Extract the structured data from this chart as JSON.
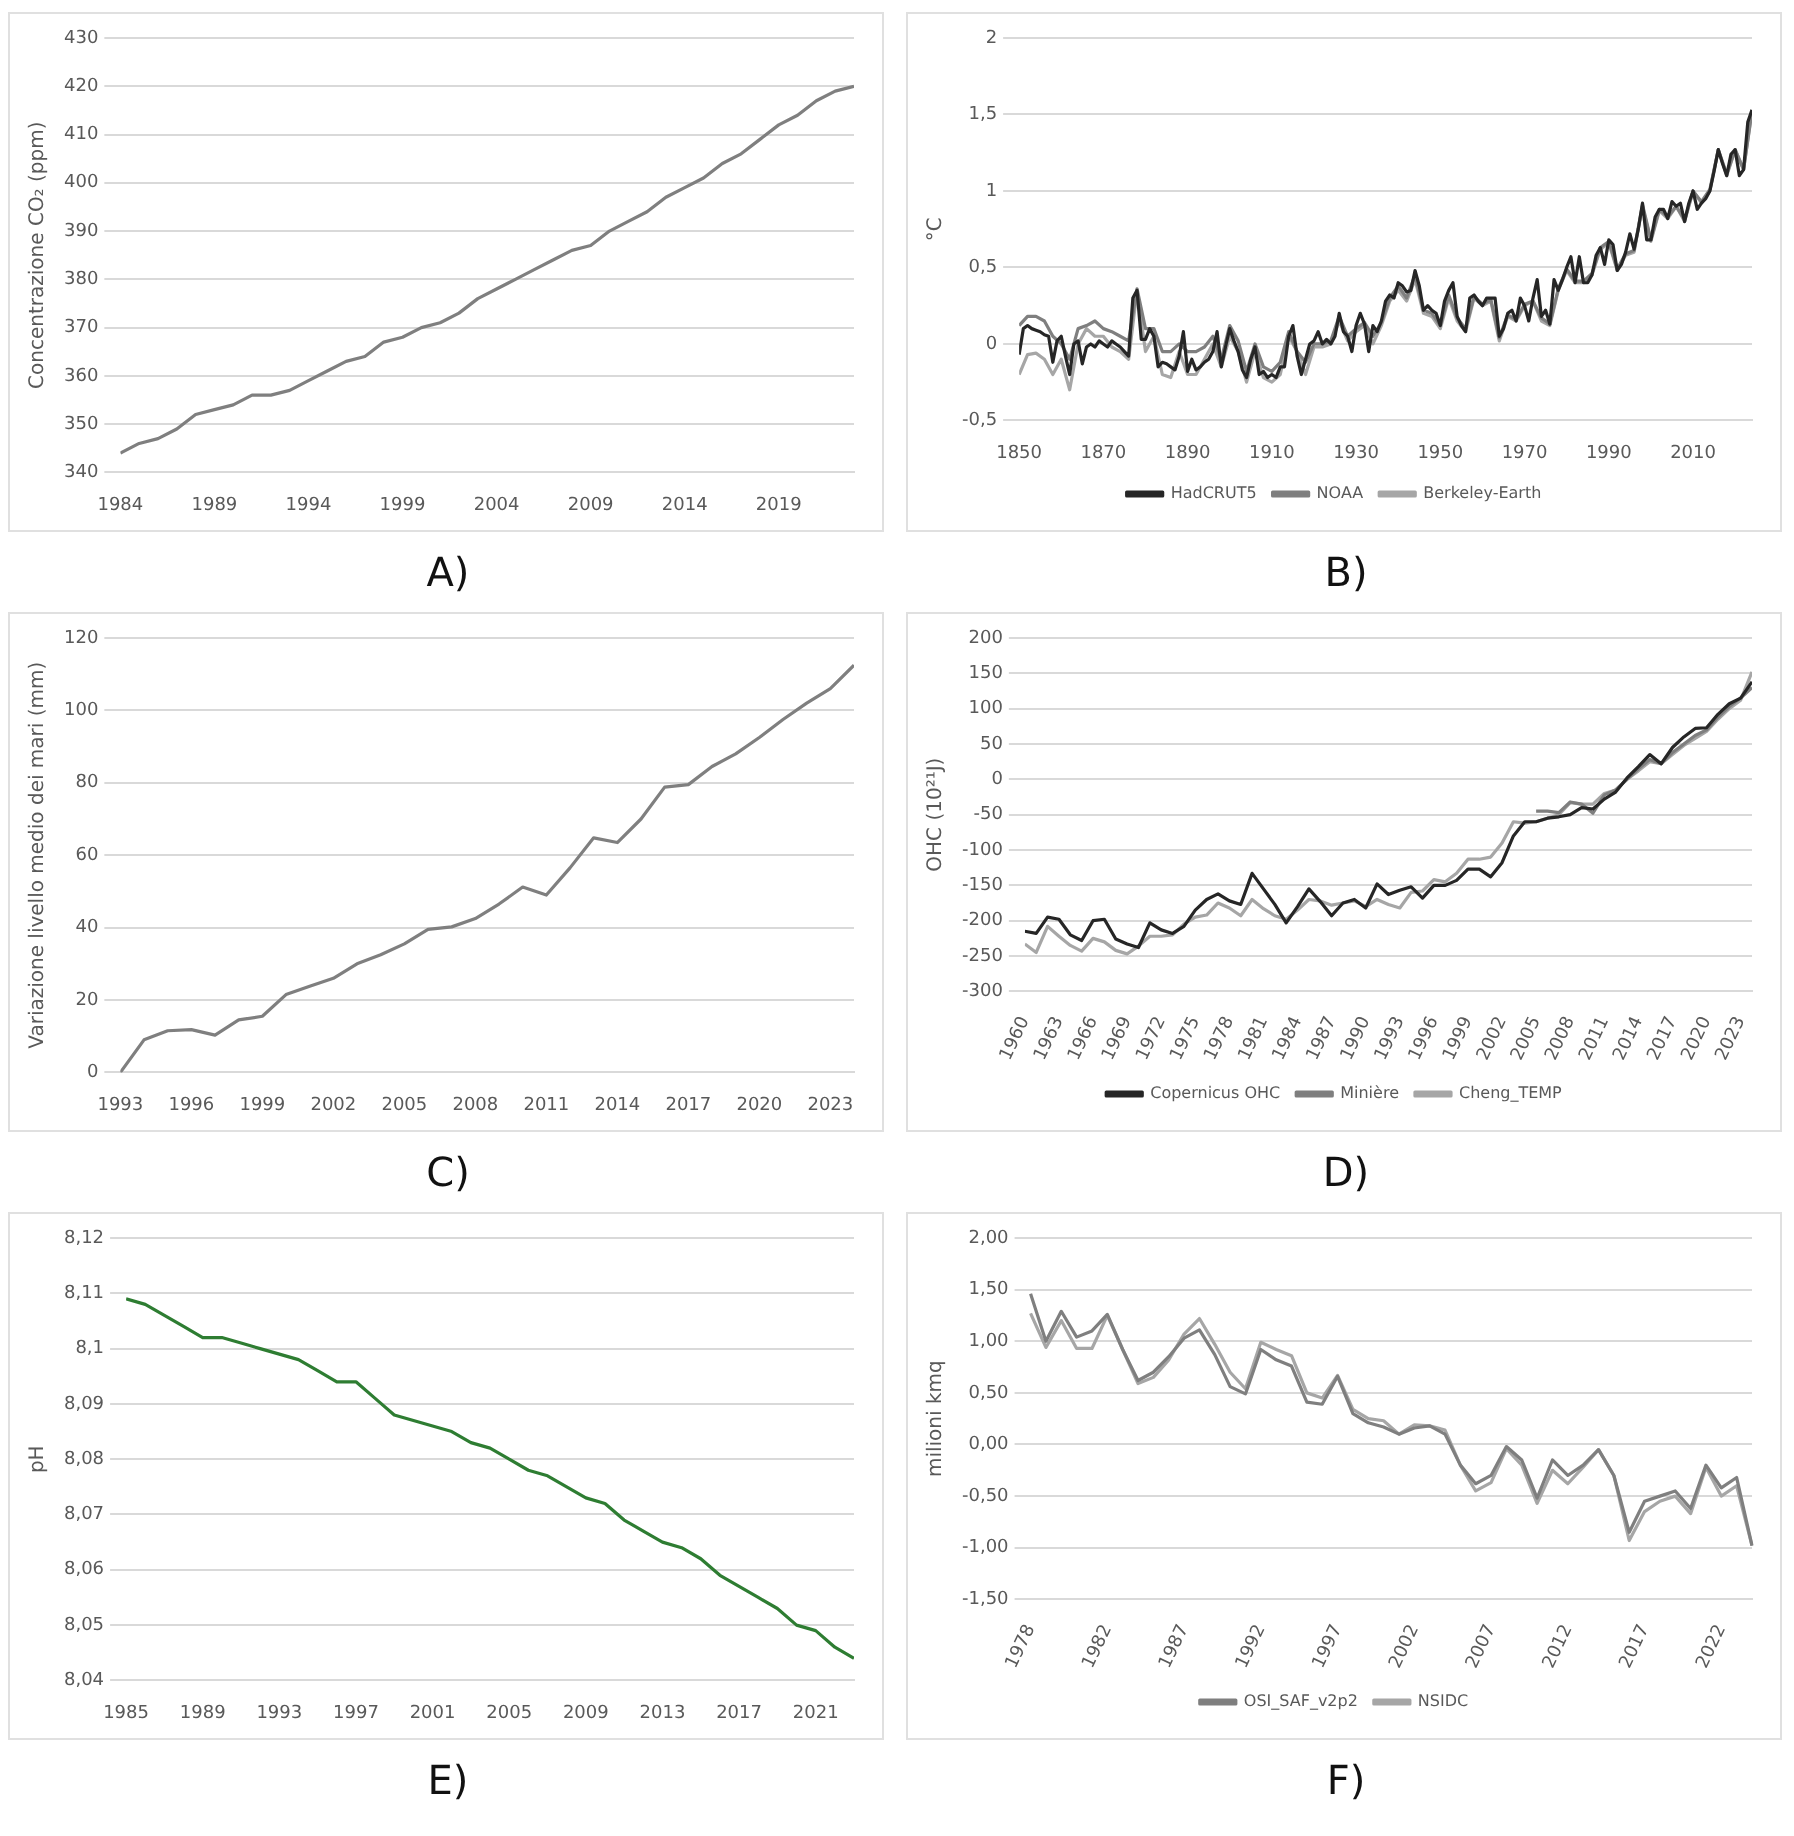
{
  "chart_data": [
    {
      "type": "line",
      "title": "A)",
      "ylabel": "Concentrazione CO₂ (ppm)",
      "marker": "none",
      "grid": "y",
      "legend": false,
      "x": [
        1984,
        1985,
        1986,
        1987,
        1988,
        1989,
        1990,
        1991,
        1992,
        1993,
        1994,
        1995,
        1996,
        1997,
        1998,
        1999,
        2000,
        2001,
        2002,
        2003,
        2004,
        2005,
        2006,
        2007,
        2008,
        2009,
        2010,
        2011,
        2012,
        2013,
        2014,
        2015,
        2016,
        2017,
        2018,
        2019,
        2020,
        2021,
        2022,
        2023
      ],
      "series": [
        {
          "color": "#7f7f7f",
          "values": [
            344,
            346,
            347,
            349,
            352,
            353,
            354,
            356,
            356,
            357,
            359,
            361,
            363,
            364,
            367,
            368,
            370,
            371,
            373,
            376,
            378,
            380,
            382,
            384,
            386,
            387,
            390,
            392,
            394,
            397,
            399,
            401,
            404,
            406,
            409,
            412,
            414,
            417,
            419,
            420
          ]
        }
      ],
      "xlim": [
        1984,
        2023
      ],
      "xticks": [
        1984,
        1989,
        1994,
        1999,
        2004,
        2009,
        2014,
        2019
      ],
      "ylim": [
        340,
        430
      ],
      "yticks": [
        340,
        350,
        360,
        370,
        380,
        390,
        400,
        410,
        420,
        430
      ]
    },
    {
      "type": "line",
      "title": "B)",
      "ylabel": "°C",
      "marker": "none",
      "grid": "y",
      "legend": "bottom",
      "x": [
        1850,
        1851,
        1852,
        1853,
        1854,
        1855,
        1856,
        1857,
        1858,
        1859,
        1860,
        1861,
        1862,
        1863,
        1864,
        1865,
        1866,
        1867,
        1868,
        1869,
        1870,
        1871,
        1872,
        1873,
        1874,
        1875,
        1876,
        1877,
        1878,
        1879,
        1880,
        1881,
        1882,
        1883,
        1884,
        1885,
        1886,
        1887,
        1888,
        1889,
        1890,
        1891,
        1892,
        1893,
        1894,
        1895,
        1896,
        1897,
        1898,
        1899,
        1900,
        1901,
        1902,
        1903,
        1904,
        1905,
        1906,
        1907,
        1908,
        1909,
        1910,
        1911,
        1912,
        1913,
        1914,
        1915,
        1916,
        1917,
        1918,
        1919,
        1920,
        1921,
        1922,
        1923,
        1924,
        1925,
        1926,
        1927,
        1928,
        1929,
        1930,
        1931,
        1932,
        1933,
        1934,
        1935,
        1936,
        1937,
        1938,
        1939,
        1940,
        1941,
        1942,
        1943,
        1944,
        1945,
        1946,
        1947,
        1948,
        1949,
        1950,
        1951,
        1952,
        1953,
        1954,
        1955,
        1956,
        1957,
        1958,
        1959,
        1960,
        1961,
        1962,
        1963,
        1964,
        1965,
        1966,
        1967,
        1968,
        1969,
        1970,
        1971,
        1972,
        1973,
        1974,
        1975,
        1976,
        1977,
        1978,
        1979,
        1980,
        1981,
        1982,
        1983,
        1984,
        1985,
        1986,
        1987,
        1988,
        1989,
        1990,
        1991,
        1992,
        1993,
        1994,
        1995,
        1996,
        1997,
        1998,
        1999,
        2000,
        2001,
        2002,
        2003,
        2004,
        2005,
        2006,
        2007,
        2008,
        2009,
        2010,
        2011,
        2012,
        2013,
        2014,
        2015,
        2016,
        2017,
        2018,
        2019,
        2020,
        2021,
        2022,
        2023,
        2024
      ],
      "series": [
        {
          "name": "Berkeley-Earth",
          "color": "#a6a6a6",
          "x": [
            1850,
            1852,
            1854,
            1856,
            1858,
            1860,
            1862,
            1864,
            1866,
            1868,
            1870,
            1872,
            1874,
            1876,
            1878,
            1880,
            1882,
            1884,
            1886,
            1888,
            1890,
            1892,
            1894,
            1896,
            1898,
            1900,
            1902,
            1904,
            1906,
            1908,
            1910,
            1912,
            1914,
            1916,
            1918,
            1920,
            1922,
            1924,
            1926,
            1928,
            1930,
            1932,
            1934,
            1936,
            1938,
            1940,
            1942,
            1944,
            1946,
            1948,
            1950,
            1952,
            1954,
            1956,
            1958,
            1960,
            1962,
            1964,
            1966,
            1968,
            1970,
            1972,
            1974,
            1976,
            1978,
            1980,
            1982,
            1984,
            1986,
            1988,
            1990,
            1992,
            1994,
            1996,
            1998,
            2000,
            2002,
            2004,
            2006,
            2008,
            2010,
            2012,
            2014,
            2016,
            2018,
            2020,
            2022,
            2024
          ],
          "values": [
            -0.2,
            -0.07,
            -0.06,
            -0.1,
            -0.2,
            -0.1,
            -0.3,
            0.0,
            0.1,
            0.05,
            0.05,
            -0.02,
            -0.05,
            -0.1,
            0.35,
            -0.05,
            0.05,
            -0.2,
            -0.22,
            -0.05,
            -0.2,
            -0.2,
            -0.1,
            0.0,
            -0.15,
            0.05,
            -0.05,
            -0.25,
            -0.05,
            -0.22,
            -0.25,
            -0.2,
            0.05,
            -0.05,
            -0.2,
            -0.02,
            -0.02,
            0.0,
            0.15,
            0.02,
            0.08,
            0.12,
            0.0,
            0.12,
            0.28,
            0.35,
            0.28,
            0.42,
            0.2,
            0.18,
            0.1,
            0.3,
            0.15,
            0.08,
            0.3,
            0.25,
            0.28,
            0.02,
            0.18,
            0.15,
            0.25,
            0.28,
            0.15,
            0.12,
            0.35,
            0.48,
            0.4,
            0.4,
            0.45,
            0.62,
            0.66,
            0.48,
            0.58,
            0.6,
            0.9,
            0.67,
            0.87,
            0.82,
            0.9,
            0.8,
            1.0,
            0.92,
            1.0,
            1.27,
            1.1,
            1.27,
            1.14,
            1.53
          ]
        },
        {
          "name": "NOAA",
          "color": "#7f7f7f",
          "x": [
            1850,
            1852,
            1854,
            1856,
            1858,
            1860,
            1862,
            1864,
            1866,
            1868,
            1870,
            1872,
            1874,
            1876,
            1878,
            1880,
            1882,
            1884,
            1886,
            1888,
            1890,
            1892,
            1894,
            1896,
            1898,
            1900,
            1902,
            1904,
            1906,
            1908,
            1910,
            1912,
            1914,
            1916,
            1918,
            1920,
            1922,
            1924,
            1926,
            1928,
            1930,
            1932,
            1934,
            1936,
            1938,
            1940,
            1942,
            1944,
            1946,
            1948,
            1950,
            1952,
            1954,
            1956,
            1958,
            1960,
            1962,
            1964,
            1966,
            1968,
            1970,
            1972,
            1974,
            1976,
            1978,
            1980,
            1982,
            1984,
            1986,
            1988,
            1990,
            1992,
            1994,
            1996,
            1998,
            2000,
            2002,
            2004,
            2006,
            2008,
            2010,
            2012,
            2014,
            2016,
            2018,
            2020,
            2022,
            2024
          ],
          "values": [
            0.12,
            0.18,
            0.18,
            0.15,
            0.05,
            0.0,
            -0.1,
            0.1,
            0.12,
            0.15,
            0.1,
            0.08,
            0.05,
            0.02,
            0.36,
            0.1,
            0.1,
            -0.05,
            -0.05,
            0.0,
            -0.05,
            -0.05,
            -0.02,
            0.05,
            -0.1,
            0.12,
            0.02,
            -0.18,
            0.0,
            -0.15,
            -0.18,
            -0.12,
            0.08,
            -0.05,
            -0.12,
            0.0,
            0.0,
            0.02,
            0.18,
            0.05,
            0.1,
            0.14,
            0.05,
            0.14,
            0.3,
            0.38,
            0.3,
            0.45,
            0.22,
            0.2,
            0.12,
            0.32,
            0.17,
            0.1,
            0.31,
            0.26,
            0.29,
            0.04,
            0.19,
            0.16,
            0.26,
            0.28,
            0.17,
            0.13,
            0.36,
            0.49,
            0.41,
            0.41,
            0.46,
            0.63,
            0.67,
            0.49,
            0.59,
            0.61,
            0.91,
            0.68,
            0.88,
            0.83,
            0.9,
            0.81,
            1.0,
            0.93,
            1.01,
            1.27,
            1.11,
            1.27,
            1.14,
            1.52
          ]
        },
        {
          "name": "HadCRUT5",
          "color": "#262626",
          "values": [
            -0.07,
            0.1,
            0.12,
            0.1,
            0.09,
            0.08,
            0.06,
            0.05,
            -0.12,
            0.02,
            0.05,
            -0.08,
            -0.2,
            0.0,
            0.02,
            -0.13,
            -0.02,
            0.0,
            -0.02,
            0.02,
            0.0,
            -0.02,
            0.02,
            0.0,
            -0.02,
            -0.05,
            -0.08,
            0.3,
            0.35,
            0.03,
            0.03,
            0.1,
            0.05,
            -0.15,
            -0.12,
            -0.13,
            -0.15,
            -0.17,
            -0.08,
            0.08,
            -0.18,
            -0.1,
            -0.17,
            -0.15,
            -0.12,
            -0.1,
            -0.05,
            0.08,
            -0.15,
            -0.02,
            0.1,
            0.02,
            -0.05,
            -0.17,
            -0.22,
            -0.1,
            -0.02,
            -0.2,
            -0.18,
            -0.22,
            -0.2,
            -0.22,
            -0.15,
            -0.15,
            0.05,
            0.12,
            -0.08,
            -0.2,
            -0.1,
            0.0,
            0.02,
            0.08,
            0.0,
            0.03,
            0.0,
            0.05,
            0.2,
            0.08,
            0.05,
            -0.05,
            0.12,
            0.2,
            0.13,
            -0.05,
            0.12,
            0.08,
            0.15,
            0.28,
            0.32,
            0.3,
            0.4,
            0.38,
            0.34,
            0.35,
            0.48,
            0.38,
            0.22,
            0.25,
            0.22,
            0.2,
            0.12,
            0.28,
            0.35,
            0.4,
            0.18,
            0.12,
            0.08,
            0.3,
            0.32,
            0.28,
            0.25,
            0.3,
            0.3,
            0.3,
            0.05,
            0.1,
            0.2,
            0.22,
            0.15,
            0.3,
            0.25,
            0.15,
            0.3,
            0.42,
            0.18,
            0.22,
            0.13,
            0.42,
            0.35,
            0.42,
            0.5,
            0.57,
            0.4,
            0.57,
            0.4,
            0.4,
            0.45,
            0.58,
            0.63,
            0.52,
            0.68,
            0.65,
            0.48,
            0.52,
            0.6,
            0.72,
            0.62,
            0.75,
            0.92,
            0.68,
            0.68,
            0.83,
            0.88,
            0.88,
            0.82,
            0.93,
            0.9,
            0.92,
            0.8,
            0.92,
            1.0,
            0.88,
            0.92,
            0.95,
            1.0,
            1.13,
            1.27,
            1.18,
            1.1,
            1.24,
            1.27,
            1.1,
            1.14,
            1.45,
            1.53
          ]
        }
      ],
      "xlim": [
        1850,
        2024
      ],
      "xticks": [
        1850,
        1870,
        1890,
        1910,
        1930,
        1950,
        1970,
        1990,
        2010
      ],
      "ylim": [
        -0.5,
        2
      ],
      "yticks": [
        {
          "value": -0.5,
          "label": "-0,5"
        },
        0,
        {
          "value": 0.5,
          "label": "0,5"
        },
        1,
        {
          "value": 1.5,
          "label": "1,5"
        },
        2
      ]
    },
    {
      "type": "line",
      "title": "C)",
      "ylabel": "Variazione livello medio dei mari (mm)",
      "marker": "none",
      "grid": "y",
      "legend": false,
      "x": [
        1993,
        1994,
        1995,
        1996,
        1997,
        1998,
        1999,
        2000,
        2001,
        2002,
        2003,
        2004,
        2005,
        2006,
        2007,
        2008,
        2009,
        2010,
        2011,
        2012,
        2013,
        2014,
        2015,
        2016,
        2017,
        2018,
        2019,
        2020,
        2021,
        2022,
        2023,
        2024
      ],
      "series": [
        {
          "color": "#7f7f7f",
          "values": [
            0,
            9,
            11.5,
            11.8,
            10.3,
            14.5,
            15.5,
            21.5,
            23.8,
            26,
            30,
            32.5,
            35.5,
            39.5,
            40.2,
            42.5,
            46.5,
            51.2,
            49,
            56.5,
            64.8,
            63.5,
            70,
            78.8,
            79.5,
            84.5,
            88,
            92.5,
            97.5,
            102,
            106,
            112.5
          ]
        }
      ],
      "xlim": [
        1993,
        2024
      ],
      "xticks": [
        1993,
        1996,
        1999,
        2002,
        2005,
        2008,
        2011,
        2014,
        2017,
        2020,
        2023
      ],
      "ylim": [
        0,
        120
      ],
      "yticks": [
        0,
        20,
        40,
        60,
        80,
        100,
        120
      ]
    },
    {
      "type": "line",
      "title": "D)",
      "ylabel": "OHC (10²¹J)",
      "marker": "none",
      "grid": "y",
      "legend": "bottom",
      "x": [
        1960,
        1961,
        1962,
        1963,
        1964,
        1965,
        1966,
        1967,
        1968,
        1969,
        1970,
        1971,
        1972,
        1973,
        1974,
        1975,
        1976,
        1977,
        1978,
        1979,
        1980,
        1981,
        1982,
        1983,
        1984,
        1985,
        1986,
        1987,
        1988,
        1989,
        1990,
        1991,
        1992,
        1993,
        1994,
        1995,
        1996,
        1997,
        1998,
        1999,
        2000,
        2001,
        2002,
        2003,
        2004,
        2005,
        2006,
        2007,
        2008,
        2009,
        2010,
        2011,
        2012,
        2013,
        2014,
        2015,
        2016,
        2017,
        2018,
        2019,
        2020,
        2021,
        2022,
        2023,
        2024
      ],
      "series": [
        {
          "name": "Cheng_TEMP",
          "color": "#a6a6a6",
          "values": [
            -233,
            -245,
            -208,
            -222,
            -235,
            -243,
            -225,
            -230,
            -242,
            -247,
            -236,
            -222,
            -222,
            -220,
            -205,
            -195,
            -192,
            -175,
            -182,
            -193,
            -170,
            -183,
            -193,
            -198,
            -185,
            -170,
            -172,
            -178,
            -175,
            -172,
            -180,
            -170,
            -177,
            -182,
            -160,
            -158,
            -142,
            -145,
            -133,
            -113,
            -113,
            -110,
            -90,
            -60,
            -62,
            -60,
            -55,
            -50,
            -33,
            -35,
            -35,
            -20,
            -15,
            0,
            12,
            25,
            22,
            35,
            48,
            58,
            68,
            85,
            100,
            112,
            152
          ]
        },
        {
          "name": "Minière",
          "color": "#7f7f7f",
          "x": [
            2005,
            2006,
            2007,
            2008,
            2009,
            2010,
            2011,
            2012,
            2013,
            2014,
            2015,
            2016,
            2017,
            2018,
            2019,
            2020,
            2021,
            2022,
            2023,
            2024
          ],
          "values": [
            -45,
            -45,
            -47,
            -32,
            -35,
            -48,
            -22,
            -15,
            0,
            15,
            28,
            22,
            38,
            50,
            62,
            70,
            88,
            103,
            115,
            130
          ]
        },
        {
          "name": "Copernicus OHC",
          "color": "#262626",
          "values": [
            -215,
            -218,
            -195,
            -198,
            -220,
            -228,
            -200,
            -198,
            -226,
            -233,
            -238,
            -203,
            -213,
            -218,
            -208,
            -185,
            -170,
            -162,
            -172,
            -177,
            -133,
            -155,
            -177,
            -203,
            -180,
            -155,
            -173,
            -193,
            -175,
            -170,
            -182,
            -148,
            -163,
            -157,
            -152,
            -168,
            -150,
            -150,
            -143,
            -127,
            -127,
            -138,
            -118,
            -80,
            -60,
            -60,
            -55,
            -53,
            -50,
            -40,
            -42,
            -28,
            -18,
            2,
            18,
            35,
            22,
            45,
            60,
            72,
            73,
            92,
            107,
            115,
            138
          ]
        }
      ],
      "xlim": [
        1960,
        2024
      ],
      "xticks": [
        1960,
        1963,
        1966,
        1969,
        1972,
        1975,
        1978,
        1981,
        1984,
        1987,
        1990,
        1993,
        1996,
        1999,
        2002,
        2005,
        2008,
        2011,
        2014,
        2017,
        2020,
        2023
      ],
      "ylim": [
        -300,
        200
      ],
      "yticks": [
        -300,
        -250,
        -200,
        -150,
        -100,
        -50,
        0,
        50,
        100,
        150,
        200
      ]
    },
    {
      "type": "line",
      "title": "E)",
      "ylabel": "pH",
      "marker": "none",
      "grid": "y",
      "legend": false,
      "x": [
        1985,
        1986,
        1987,
        1988,
        1989,
        1990,
        1991,
        1992,
        1993,
        1994,
        1995,
        1996,
        1997,
        1998,
        1999,
        2000,
        2001,
        2002,
        2003,
        2004,
        2005,
        2006,
        2007,
        2008,
        2009,
        2010,
        2011,
        2012,
        2013,
        2014,
        2015,
        2016,
        2017,
        2018,
        2019,
        2020,
        2021,
        2022,
        2023
      ],
      "series": [
        {
          "color": "#2e7d32",
          "values": [
            8.109,
            8.108,
            8.106,
            8.104,
            8.102,
            8.102,
            8.101,
            8.1,
            8.099,
            8.098,
            8.096,
            8.094,
            8.094,
            8.091,
            8.088,
            8.087,
            8.086,
            8.085,
            8.083,
            8.082,
            8.08,
            8.078,
            8.077,
            8.075,
            8.073,
            8.072,
            8.069,
            8.067,
            8.065,
            8.064,
            8.062,
            8.059,
            8.057,
            8.055,
            8.053,
            8.05,
            8.049,
            8.046,
            8.044
          ]
        }
      ],
      "xlim": [
        1985,
        2023
      ],
      "xticks": [
        1985,
        1989,
        1993,
        1997,
        2001,
        2005,
        2009,
        2013,
        2017,
        2021
      ],
      "ylim": [
        8.04,
        8.12
      ],
      "yticks": [
        {
          "value": 8.04,
          "label": "8,04"
        },
        {
          "value": 8.05,
          "label": "8,05"
        },
        {
          "value": 8.06,
          "label": "8,06"
        },
        {
          "value": 8.07,
          "label": "8,07"
        },
        {
          "value": 8.08,
          "label": "8,08"
        },
        {
          "value": 8.09,
          "label": "8,09"
        },
        {
          "value": 8.1,
          "label": "8,1"
        },
        {
          "value": 8.11,
          "label": "8,11"
        },
        {
          "value": 8.12,
          "label": "8,12"
        }
      ]
    },
    {
      "type": "line",
      "title": "F)",
      "ylabel": "milioni kmq",
      "marker": "none",
      "grid": "y",
      "legend": "bottom",
      "categories": [
        "1978",
        null,
        null,
        null,
        null,
        "1982",
        null,
        null,
        null,
        null,
        "1987",
        null,
        null,
        null,
        null,
        "1992",
        null,
        null,
        null,
        null,
        "1997",
        null,
        null,
        null,
        null,
        "2002",
        null,
        null,
        null,
        null,
        "2007",
        null,
        null,
        null,
        null,
        "2012",
        null,
        null,
        null,
        null,
        "2017",
        null,
        null,
        null,
        null,
        "2022",
        null,
        null
      ],
      "series": [
        {
          "name": "NSIDC",
          "color": "#a6a6a6",
          "values": [
            1.27,
            0.94,
            1.2,
            0.93,
            0.93,
            1.25,
            0.92,
            0.59,
            0.65,
            0.82,
            1.07,
            1.22,
            0.97,
            0.7,
            0.54,
            0.99,
            0.92,
            0.86,
            0.5,
            0.45,
            0.67,
            0.34,
            0.25,
            0.23,
            0.1,
            0.19,
            0.18,
            0.14,
            -0.2,
            -0.45,
            -0.37,
            -0.04,
            -0.2,
            -0.57,
            -0.25,
            -0.38,
            -0.22,
            -0.05,
            -0.3,
            -0.93,
            -0.65,
            -0.55,
            -0.5,
            -0.67,
            -0.22,
            -0.5,
            -0.4,
            -0.98
          ]
        },
        {
          "name": "OSI_SAF_v2p2",
          "color": "#7f7f7f",
          "values": [
            1.46,
            1.0,
            1.29,
            1.04,
            1.1,
            1.26,
            0.92,
            0.62,
            0.7,
            0.85,
            1.03,
            1.11,
            0.87,
            0.56,
            0.49,
            0.92,
            0.82,
            0.76,
            0.41,
            0.39,
            0.66,
            0.3,
            0.21,
            0.17,
            0.1,
            0.16,
            0.18,
            0.1,
            -0.2,
            -0.38,
            -0.3,
            -0.02,
            -0.15,
            -0.52,
            -0.15,
            -0.3,
            -0.2,
            -0.05,
            -0.3,
            -0.85,
            -0.55,
            -0.5,
            -0.45,
            -0.62,
            -0.2,
            -0.42,
            -0.32,
            -0.98
          ]
        }
      ],
      "ylim": [
        -1.5,
        2
      ],
      "yticks": [
        {
          "value": -1.5,
          "label": "-1,50"
        },
        {
          "value": -1,
          "label": "-1,00"
        },
        {
          "value": -0.5,
          "label": "-0,50"
        },
        {
          "value": 0,
          "label": "0,00"
        },
        {
          "value": 0.5,
          "label": "0,50"
        },
        {
          "value": 1,
          "label": "1,00"
        },
        {
          "value": 1.5,
          "label": "1,50"
        },
        {
          "value": 2,
          "label": "2,00"
        }
      ]
    }
  ]
}
